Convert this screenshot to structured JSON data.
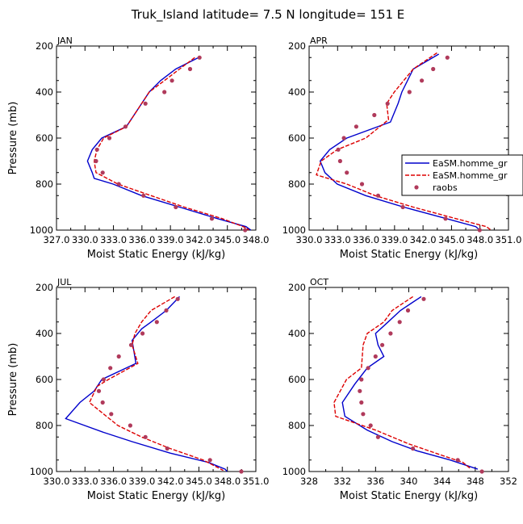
{
  "figure": {
    "title": "Truk_Island   latitude= 7.5 N longitude= 151 E"
  },
  "legend": {
    "entries": [
      {
        "label": "EaSM.homme_gr",
        "color": "#0000cc",
        "style": "solid"
      },
      {
        "label": "EaSM.homme_gr",
        "color": "#dd0000",
        "style": "dashed"
      },
      {
        "label": "raobs",
        "color": "#b03a5b",
        "style": "dot"
      }
    ]
  },
  "colors": {
    "model_solid": "#0000cc",
    "model_dashed": "#dd0000",
    "raobs": "#b03a5b"
  },
  "chart_data": [
    {
      "type": "line",
      "panel_title": "JAN",
      "xlabel": "Moist Static Energy (kJ/kg)",
      "ylabel": "Pressure (mb)",
      "xlim": [
        327.0333,
        348.0333
      ],
      "ylim": [
        1000,
        200
      ],
      "x_tick_values": [
        327.0333,
        330.0333,
        333.0333,
        336.0333,
        339.0333,
        342.0333,
        345.0333,
        348.0333
      ],
      "x_tick_labels": [
        "327.0",
        "330.0",
        "333.0",
        "336.0",
        "339.0",
        "342.0",
        "345.0",
        "348.0"
      ],
      "y_ticks": [
        200,
        400,
        600,
        800,
        1000
      ],
      "series": [
        {
          "style": "solid",
          "points": [
            [
              342.0,
              250
            ],
            [
              339.6,
              300
            ],
            [
              338.0,
              350
            ],
            [
              336.8,
              400
            ],
            [
              336.0,
              450
            ],
            [
              335.2,
              500
            ],
            [
              334.4,
              550
            ],
            [
              331.8,
              600
            ],
            [
              330.8,
              650
            ],
            [
              330.3,
              700
            ],
            [
              330.8,
              750
            ],
            [
              331.0,
              775
            ],
            [
              333.0,
              800
            ],
            [
              336.0,
              850
            ],
            [
              340.0,
              900
            ],
            [
              344.0,
              950
            ],
            [
              347.0,
              985
            ],
            [
              347.5,
              1000
            ]
          ]
        },
        {
          "style": "dashed",
          "points": [
            [
              341.6,
              250
            ],
            [
              340.0,
              300
            ],
            [
              338.4,
              350
            ],
            [
              336.8,
              400
            ],
            [
              336.0,
              450
            ],
            [
              335.2,
              500
            ],
            [
              334.4,
              550
            ],
            [
              332.0,
              600
            ],
            [
              331.3,
              650
            ],
            [
              331.0,
              700
            ],
            [
              331.2,
              750
            ],
            [
              333.5,
              800
            ],
            [
              337.0,
              850
            ],
            [
              340.5,
              900
            ],
            [
              344.5,
              950
            ],
            [
              347.0,
              990
            ],
            [
              347.3,
              1000
            ]
          ]
        }
      ],
      "raobs": [
        [
          342.1,
          250
        ],
        [
          341.1,
          300
        ],
        [
          339.2,
          350
        ],
        [
          338.4,
          400
        ],
        [
          336.4,
          450
        ],
        [
          334.3,
          550
        ],
        [
          332.6,
          600
        ],
        [
          331.3,
          650
        ],
        [
          331.2,
          700
        ],
        [
          331.9,
          750
        ],
        [
          333.6,
          800
        ],
        [
          336.2,
          850
        ],
        [
          339.6,
          900
        ],
        [
          343.4,
          950
        ],
        [
          346.9,
          1000
        ]
      ]
    },
    {
      "type": "line",
      "panel_title": "APR",
      "xlabel": "Moist Static Energy (kJ/kg)",
      "ylabel": "",
      "xlim": [
        330.0333,
        351.0333
      ],
      "ylim": [
        1000,
        200
      ],
      "x_tick_values": [
        330.0333,
        333.0333,
        336.0333,
        339.0333,
        342.0333,
        345.0333,
        348.0333,
        351.0333
      ],
      "x_tick_labels": [
        "330.0",
        "333.0",
        "336.0",
        "339.0",
        "342.0",
        "345.0",
        "348.0",
        "351.0"
      ],
      "y_ticks": [
        200,
        400,
        600,
        800,
        1000
      ],
      "series": [
        {
          "style": "solid",
          "points": [
            [
              343.7,
              235
            ],
            [
              341.0,
              300
            ],
            [
              339.8,
              400
            ],
            [
              339.4,
              450
            ],
            [
              338.6,
              530
            ],
            [
              334.0,
              600
            ],
            [
              332.2,
              650
            ],
            [
              331.2,
              700
            ],
            [
              331.7,
              750
            ],
            [
              333.0,
              800
            ],
            [
              336.0,
              850
            ],
            [
              340.0,
              900
            ],
            [
              344.5,
              950
            ],
            [
              347.6,
              985
            ],
            [
              348.0,
              1000
            ]
          ]
        },
        {
          "style": "dashed",
          "points": [
            [
              343.5,
              230
            ],
            [
              341.0,
              300
            ],
            [
              340.0,
              350
            ],
            [
              339.0,
              400
            ],
            [
              338.2,
              450
            ],
            [
              338.4,
              520
            ],
            [
              336.0,
              600
            ],
            [
              333.0,
              650
            ],
            [
              331.3,
              700
            ],
            [
              330.8,
              760
            ],
            [
              334.0,
              800
            ],
            [
              337.0,
              850
            ],
            [
              341.0,
              900
            ],
            [
              345.5,
              950
            ],
            [
              348.7,
              985
            ],
            [
              349.2,
              1000
            ]
          ]
        }
      ],
      "raobs": [
        [
          344.6,
          250
        ],
        [
          343.1,
          300
        ],
        [
          341.9,
          350
        ],
        [
          340.6,
          400
        ],
        [
          338.3,
          450
        ],
        [
          336.9,
          500
        ],
        [
          335.0,
          550
        ],
        [
          333.7,
          600
        ],
        [
          333.1,
          650
        ],
        [
          333.3,
          700
        ],
        [
          334.0,
          750
        ],
        [
          335.6,
          800
        ],
        [
          337.3,
          850
        ],
        [
          339.9,
          900
        ],
        [
          344.4,
          950
        ],
        [
          348.0,
          1000
        ]
      ]
    },
    {
      "type": "line",
      "panel_title": "JUL",
      "xlabel": "Moist Static Energy (kJ/kg)",
      "ylabel": "Pressure (mb)",
      "xlim": [
        330.0333,
        351.0333
      ],
      "ylim": [
        1000,
        200
      ],
      "x_tick_values": [
        330.0333,
        333.0333,
        336.0333,
        339.0333,
        342.0333,
        345.0333,
        348.0333,
        351.0333
      ],
      "x_tick_labels": [
        "330.0",
        "333.0",
        "336.0",
        "339.0",
        "342.0",
        "345.0",
        "348.0",
        "351.0"
      ],
      "y_ticks": [
        200,
        400,
        600,
        800,
        1000
      ],
      "series": [
        {
          "style": "solid",
          "points": [
            [
              343.0,
              240
            ],
            [
              341.6,
              300
            ],
            [
              340.0,
              350
            ],
            [
              339.0,
              380
            ],
            [
              338.0,
              430
            ],
            [
              338.4,
              530
            ],
            [
              334.8,
              600
            ],
            [
              334.0,
              650
            ],
            [
              332.5,
              700
            ],
            [
              331.0,
              770
            ],
            [
              335.0,
              830
            ],
            [
              338.0,
              870
            ],
            [
              342.0,
              920
            ],
            [
              346.0,
              960
            ],
            [
              347.8,
              990
            ],
            [
              348.0,
              1000
            ]
          ]
        },
        {
          "style": "dashed",
          "points": [
            [
              342.5,
              240
            ],
            [
              340.0,
              300
            ],
            [
              339.0,
              350
            ],
            [
              338.3,
              400
            ],
            [
              338.0,
              450
            ],
            [
              338.6,
              530
            ],
            [
              335.5,
              600
            ],
            [
              334.3,
              630
            ],
            [
              333.5,
              700
            ],
            [
              335.0,
              750
            ],
            [
              336.5,
              800
            ],
            [
              339.0,
              850
            ],
            [
              342.0,
              900
            ],
            [
              345.5,
              950
            ],
            [
              347.6,
              995
            ]
          ]
        }
      ],
      "raobs": [
        [
          342.8,
          250
        ],
        [
          341.6,
          300
        ],
        [
          340.6,
          350
        ],
        [
          339.1,
          400
        ],
        [
          337.9,
          450
        ],
        [
          336.6,
          500
        ],
        [
          335.7,
          550
        ],
        [
          335.0,
          600
        ],
        [
          334.5,
          650
        ],
        [
          334.9,
          700
        ],
        [
          335.8,
          750
        ],
        [
          337.8,
          800
        ],
        [
          339.4,
          850
        ],
        [
          341.7,
          900
        ],
        [
          346.2,
          950
        ],
        [
          349.5,
          1000
        ]
      ]
    },
    {
      "type": "line",
      "panel_title": "OCT",
      "xlabel": "Moist Static Energy (kJ/kg)",
      "ylabel": "",
      "xlim": [
        328,
        352
      ],
      "ylim": [
        1000,
        200
      ],
      "x_tick_values": [
        328,
        332,
        336,
        340,
        344,
        348,
        352
      ],
      "x_tick_labels": [
        "328",
        "332",
        "336",
        "340",
        "344",
        "348",
        "352"
      ],
      "y_ticks": [
        200,
        400,
        600,
        800,
        1000
      ],
      "series": [
        {
          "style": "solid",
          "points": [
            [
              341.5,
              240
            ],
            [
              339.0,
              300
            ],
            [
              337.5,
              350
            ],
            [
              336.0,
              400
            ],
            [
              336.3,
              450
            ],
            [
              337.0,
              500
            ],
            [
              335.0,
              550
            ],
            [
              333.5,
              620
            ],
            [
              332.0,
              700
            ],
            [
              332.3,
              760
            ],
            [
              335.0,
              820
            ],
            [
              338.0,
              870
            ],
            [
              341.0,
              910
            ],
            [
              345.0,
              950
            ],
            [
              348.3,
              990
            ]
          ]
        },
        {
          "style": "dashed",
          "points": [
            [
              340.5,
              240
            ],
            [
              338.0,
              300
            ],
            [
              337.0,
              350
            ],
            [
              335.0,
              400
            ],
            [
              334.5,
              450
            ],
            [
              334.3,
              550
            ],
            [
              332.5,
              600
            ],
            [
              331.0,
              700
            ],
            [
              331.2,
              760
            ],
            [
              336.0,
              820
            ],
            [
              340.0,
              880
            ],
            [
              344.0,
              930
            ],
            [
              346.5,
              960
            ],
            [
              347.5,
              990
            ]
          ]
        }
      ],
      "raobs": [
        [
          341.8,
          250
        ],
        [
          339.9,
          300
        ],
        [
          338.9,
          350
        ],
        [
          337.8,
          400
        ],
        [
          336.8,
          450
        ],
        [
          336.0,
          500
        ],
        [
          335.1,
          550
        ],
        [
          334.3,
          600
        ],
        [
          334.1,
          650
        ],
        [
          334.3,
          700
        ],
        [
          334.5,
          750
        ],
        [
          335.4,
          800
        ],
        [
          336.3,
          850
        ],
        [
          340.5,
          900
        ],
        [
          345.9,
          950
        ],
        [
          348.8,
          1000
        ]
      ]
    }
  ]
}
